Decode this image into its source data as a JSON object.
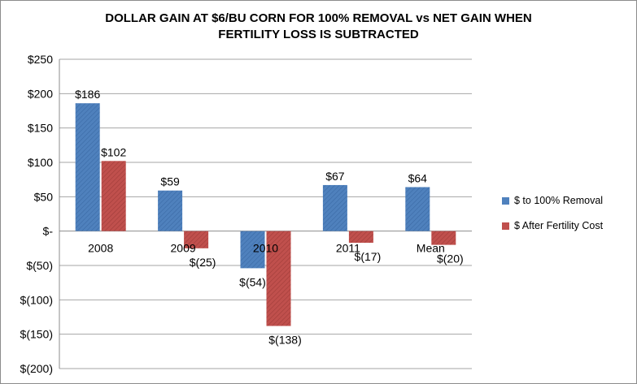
{
  "title_line1": "DOLLAR GAIN AT $6/BU CORN FOR 100% REMOVAL vs NET GAIN WHEN",
  "title_line2": "FERTILITY LOSS IS SUBTRACTED",
  "colors": {
    "series1": "#4f81bd",
    "series1_hatch": "#3a6aa5",
    "series2": "#c0504d",
    "series2_hatch": "#a03c39",
    "grid": "#a6a6a6"
  },
  "chart_data": {
    "type": "bar",
    "categories": [
      "2008",
      "2009",
      "2010",
      "2011",
      "Mean"
    ],
    "series": [
      {
        "name": "$  to 100% Removal",
        "values": [
          186,
          59,
          -54,
          67,
          64
        ],
        "labels": [
          "$186",
          "$59",
          "$(54)",
          "$67",
          "$64"
        ]
      },
      {
        "name": "$ After Fertility Cost",
        "values": [
          102,
          -25,
          -138,
          -17,
          -20
        ],
        "labels": [
          "$102",
          "$(25)",
          "$(138)",
          "$(17)",
          "$(20)"
        ]
      }
    ],
    "y_ticks": [
      250,
      200,
      150,
      100,
      50,
      0,
      -50,
      -100,
      -150,
      -200
    ],
    "y_tick_labels": [
      "$250",
      "$200",
      "$150",
      "$100",
      "$50",
      "$-",
      "$(50)",
      "$(100)",
      "$(150)",
      "$(200)"
    ],
    "ylim": [
      -200,
      250
    ],
    "grid": true,
    "legend_position": "right"
  }
}
